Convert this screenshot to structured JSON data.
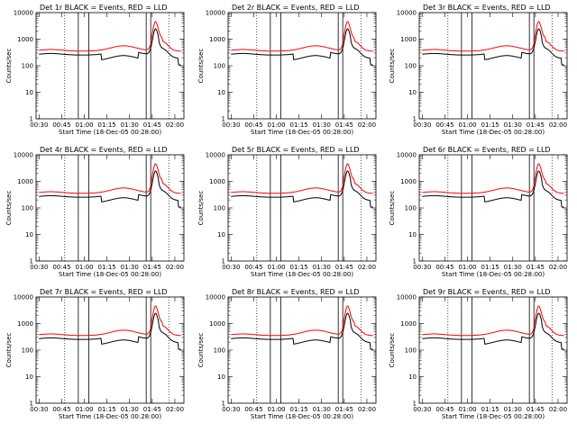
{
  "chart_data": [
    {
      "type": "line",
      "title": "Det 1r BLACK = Events, RED = LLD",
      "xlabel": "Start Time (18-Dec-05 00:28:00)",
      "ylabel": "Counts/sec",
      "x": [
        "00:30",
        "00:45",
        "01:00",
        "01:15",
        "01:30",
        "01:45",
        "02:00"
      ],
      "yscale": "log",
      "ylim": [
        1,
        10000
      ],
      "yticks": [
        "1",
        "10",
        "100",
        "1000",
        "10000"
      ],
      "series": [
        {
          "name": "BLACK = Events",
          "color": "#000000"
        },
        {
          "name": "RED = LLD",
          "color": "#ff0000"
        }
      ]
    },
    {
      "type": "line",
      "title": "Det 2r BLACK = Events, RED = LLD",
      "xlabel": "Start Time (18-Dec-05 00:28:00)",
      "ylabel": "Counts/sec",
      "x": [
        "00:30",
        "00:45",
        "01:00",
        "01:15",
        "01:30",
        "01:45",
        "02:00"
      ],
      "yscale": "log",
      "ylim": [
        1,
        10000
      ],
      "yticks": [
        "1",
        "10",
        "100",
        "1000",
        "10000"
      ],
      "series": [
        {
          "name": "BLACK = Events",
          "color": "#000000"
        },
        {
          "name": "RED = LLD",
          "color": "#ff0000"
        }
      ]
    },
    {
      "type": "line",
      "title": "Det 3r BLACK = Events, RED = LLD",
      "xlabel": "Start Time (18-Dec-05 00:28:00)",
      "ylabel": "Counts/sec",
      "x": [
        "00:30",
        "00:45",
        "01:00",
        "01:15",
        "01:30",
        "01:45",
        "02:00"
      ],
      "yscale": "log",
      "ylim": [
        1,
        10000
      ],
      "yticks": [
        "1",
        "10",
        "100",
        "1000",
        "10000"
      ],
      "series": [
        {
          "name": "BLACK = Events",
          "color": "#000000"
        },
        {
          "name": "RED = LLD",
          "color": "#ff0000"
        }
      ]
    },
    {
      "type": "line",
      "title": "Det 4r BLACK = Events, RED = LLD",
      "xlabel": "Start Time (18-Dec-05 00:28:00)",
      "ylabel": "Counts/sec",
      "x": [
        "00:30",
        "00:45",
        "01:00",
        "01:15",
        "01:30",
        "01:45",
        "02:00"
      ],
      "yscale": "log",
      "ylim": [
        1,
        10000
      ],
      "yticks": [
        "1",
        "10",
        "100",
        "1000",
        "10000"
      ],
      "series": [
        {
          "name": "BLACK = Events",
          "color": "#000000"
        },
        {
          "name": "RED = LLD",
          "color": "#ff0000"
        }
      ]
    },
    {
      "type": "line",
      "title": "Det 5r BLACK = Events, RED = LLD",
      "xlabel": "Start Time (18-Dec-05 00:28:00)",
      "ylabel": "Counts/sec",
      "x": [
        "00:30",
        "00:45",
        "01:00",
        "01:15",
        "01:30",
        "01:45",
        "02:00"
      ],
      "yscale": "log",
      "ylim": [
        1,
        10000
      ],
      "yticks": [
        "1",
        "10",
        "100",
        "1000",
        "10000"
      ],
      "series": [
        {
          "name": "BLACK = Events",
          "color": "#000000"
        },
        {
          "name": "RED = LLD",
          "color": "#ff0000"
        }
      ]
    },
    {
      "type": "line",
      "title": "Det 6r BLACK = Events, RED = LLD",
      "xlabel": "Start Time (18-Dec-05 00:28:00)",
      "ylabel": "Counts/sec",
      "x": [
        "00:30",
        "00:45",
        "01:00",
        "01:15",
        "01:30",
        "01:45",
        "02:00"
      ],
      "yscale": "log",
      "ylim": [
        1,
        10000
      ],
      "yticks": [
        "1",
        "10",
        "100",
        "1000",
        "10000"
      ],
      "series": [
        {
          "name": "BLACK = Events",
          "color": "#000000"
        },
        {
          "name": "RED = LLD",
          "color": "#ff0000"
        }
      ]
    },
    {
      "type": "line",
      "title": "Det 7r BLACK = Events, RED = LLD",
      "xlabel": "Start Time (18-Dec-05 00:28:00)",
      "ylabel": "Counts/sec",
      "x": [
        "00:30",
        "00:45",
        "01:00",
        "01:15",
        "01:30",
        "01:45",
        "02:00"
      ],
      "yscale": "log",
      "ylim": [
        1,
        10000
      ],
      "yticks": [
        "1",
        "10",
        "100",
        "1000",
        "10000"
      ],
      "series": [
        {
          "name": "BLACK = Events",
          "color": "#000000"
        },
        {
          "name": "RED = LLD",
          "color": "#ff0000"
        }
      ]
    },
    {
      "type": "line",
      "title": "Det 8r BLACK = Events, RED = LLD",
      "xlabel": "Start Time (18-Dec-05 00:28:00)",
      "ylabel": "Counts/sec",
      "x": [
        "00:30",
        "00:45",
        "01:00",
        "01:15",
        "01:30",
        "01:45",
        "02:00"
      ],
      "yscale": "log",
      "ylim": [
        1,
        10000
      ],
      "yticks": [
        "1",
        "10",
        "100",
        "1000",
        "10000"
      ],
      "series": [
        {
          "name": "BLACK = Events",
          "color": "#000000"
        },
        {
          "name": "RED = LLD",
          "color": "#ff0000"
        }
      ]
    },
    {
      "type": "line",
      "title": "Det 9r BLACK = Events, RED = LLD",
      "xlabel": "Start Time (18-Dec-05 00:28:00)",
      "ylabel": "Counts/sec",
      "x": [
        "00:30",
        "00:45",
        "01:00",
        "01:15",
        "01:30",
        "01:45",
        "02:00"
      ],
      "yscale": "log",
      "ylim": [
        1,
        10000
      ],
      "yticks": [
        "1",
        "10",
        "100",
        "1000",
        "10000"
      ],
      "series": [
        {
          "name": "BLACK = Events",
          "color": "#000000"
        },
        {
          "name": "RED = LLD",
          "color": "#ff0000"
        }
      ]
    }
  ]
}
